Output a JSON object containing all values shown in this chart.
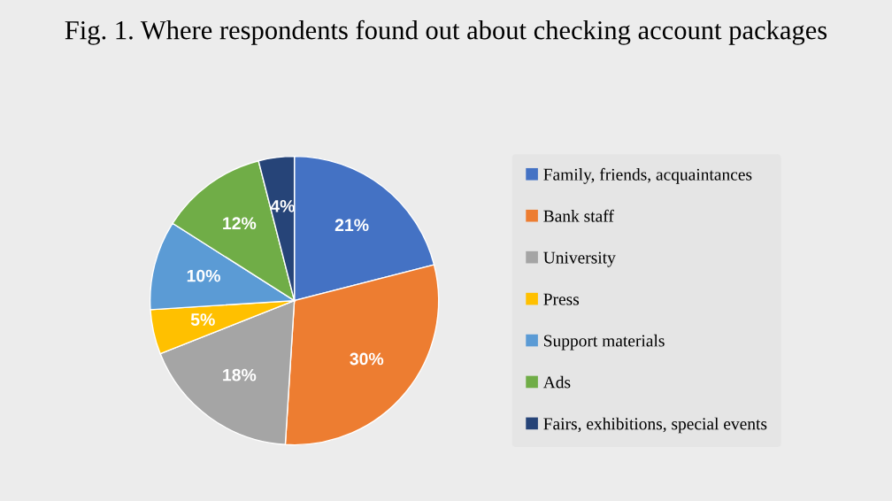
{
  "chart_data": {
    "type": "pie",
    "title": "Fig. 1. Where respondents found out about checking account packages",
    "categories": [
      "Family, friends, acquaintances",
      "Bank staff",
      "University",
      "Press",
      "Support materials",
      "Ads",
      "Fairs, exhibitions, special events"
    ],
    "values": [
      21,
      30,
      18,
      5,
      10,
      12,
      4
    ],
    "value_labels": [
      "21%",
      "30%",
      "18%",
      "5%",
      "10%",
      "12%",
      "4%"
    ],
    "colors": [
      "#4472c4",
      "#ed7d31",
      "#a5a5a5",
      "#ffc000",
      "#5b9bd5",
      "#70ad47",
      "#264478"
    ],
    "legend": "right"
  }
}
